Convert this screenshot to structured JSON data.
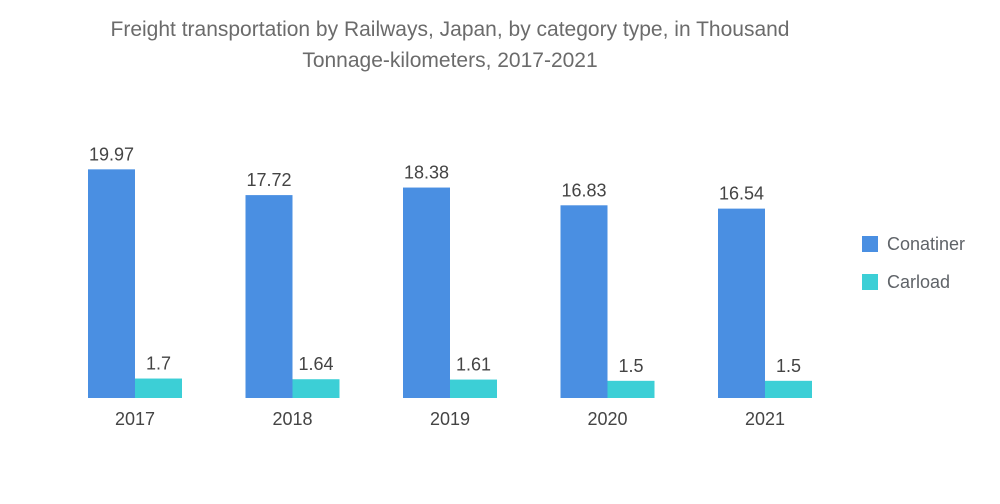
{
  "chart_data": {
    "type": "bar",
    "title_line1": "Freight transportation by Railways, Japan, by category type, in Thousand",
    "title_line2": "Tonnage-kilometers, 2017-2021",
    "categories": [
      "2017",
      "2018",
      "2019",
      "2020",
      "2021"
    ],
    "series": [
      {
        "name": "Conatiner",
        "color": "#4a8fe2",
        "values": [
          19.97,
          17.72,
          18.38,
          16.83,
          16.54
        ],
        "labels": [
          "19.97",
          "17.72",
          "18.38",
          "16.83",
          "16.54"
        ]
      },
      {
        "name": "Carload",
        "color": "#3ccfd6",
        "values": [
          1.7,
          1.64,
          1.61,
          1.5,
          1.5
        ],
        "labels": [
          "1.7",
          "1.64",
          "1.61",
          "1.5",
          "1.5"
        ]
      }
    ],
    "ylim": [
      0,
      20
    ],
    "grid": false,
    "legend_position": "right"
  }
}
